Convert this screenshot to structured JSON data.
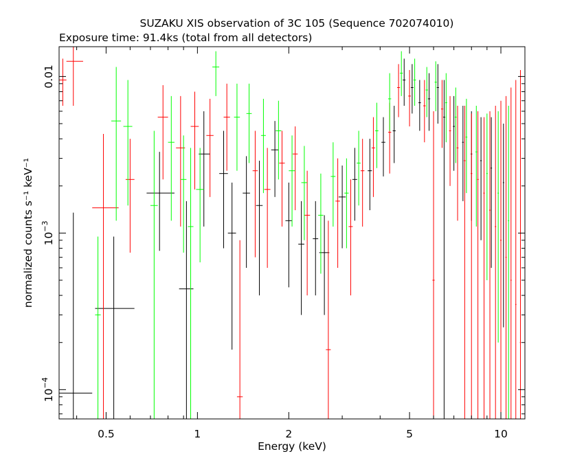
{
  "chart_data": {
    "type": "scatter",
    "title": "SUZAKU XIS observation of 3C 105 (Sequence 702074010)",
    "subtitle": "Exposure time: 91.4ks (total from all detectors)",
    "xlabel": "Energy (keV)",
    "ylabel": "normalized counts s⁻¹ keV⁻¹",
    "xscale": "log",
    "yscale": "log",
    "xlim": [
      0.35,
      12.0
    ],
    "ylim": [
      6.5e-05,
      0.0155
    ],
    "grid": false,
    "x_ticks": [
      0.5,
      1,
      2,
      5,
      10
    ],
    "x_tick_labels": [
      "0.5",
      "1",
      "2",
      "5",
      "10"
    ],
    "y_ticks": [
      0.0001,
      0.001,
      0.01
    ],
    "y_tick_labels": [
      {
        "base": "10",
        "exp": "−4"
      },
      {
        "base": "10",
        "exp": "−3"
      },
      {
        "base": "",
        "exp": "",
        "plain": "0.01"
      }
    ],
    "series": [
      {
        "color": "#000000",
        "points": [
          {
            "x": 0.39,
            "xlo": 0.35,
            "xhi": 0.45,
            "y": 9.5e-05,
            "ylo": 6.5e-05,
            "yhi": 0.00135
          },
          {
            "x": 0.53,
            "xlo": 0.46,
            "xhi": 0.62,
            "y": 0.00033,
            "ylo": 6.5e-05,
            "yhi": 0.00095
          },
          {
            "x": 0.75,
            "xlo": 0.68,
            "xhi": 0.84,
            "y": 0.0018,
            "ylo": 0.00077,
            "yhi": 0.0033
          },
          {
            "x": 0.92,
            "xlo": 0.87,
            "xhi": 0.97,
            "y": 0.00044,
            "ylo": 6.5e-05,
            "yhi": 0.0016
          },
          {
            "x": 1.05,
            "xlo": 1.01,
            "xhi": 1.1,
            "y": 0.0032,
            "ylo": 0.0011,
            "yhi": 0.006
          },
          {
            "x": 1.22,
            "xlo": 1.18,
            "xhi": 1.26,
            "y": 0.0024,
            "ylo": 0.0008,
            "yhi": 0.0045
          },
          {
            "x": 1.3,
            "xlo": 1.26,
            "xhi": 1.34,
            "y": 0.001,
            "ylo": 0.00018,
            "yhi": 0.0021
          },
          {
            "x": 1.45,
            "xlo": 1.41,
            "xhi": 1.49,
            "y": 0.0018,
            "ylo": 0.0006,
            "yhi": 0.0031
          },
          {
            "x": 1.6,
            "xlo": 1.56,
            "xhi": 1.64,
            "y": 0.0015,
            "ylo": 0.0004,
            "yhi": 0.0029
          },
          {
            "x": 1.8,
            "xlo": 1.75,
            "xhi": 1.85,
            "y": 0.0034,
            "ylo": 0.0017,
            "yhi": 0.0052
          },
          {
            "x": 2.0,
            "xlo": 1.95,
            "xhi": 2.05,
            "y": 0.0012,
            "ylo": 0.00045,
            "yhi": 0.0021
          },
          {
            "x": 2.2,
            "xlo": 2.15,
            "xhi": 2.25,
            "y": 0.00085,
            "ylo": 0.0003,
            "yhi": 0.0016
          },
          {
            "x": 2.45,
            "xlo": 2.4,
            "xhi": 2.5,
            "y": 0.00092,
            "ylo": 0.0004,
            "yhi": 0.0016
          },
          {
            "x": 2.62,
            "xlo": 2.52,
            "xhi": 2.72,
            "y": 0.00075,
            "ylo": 0.0003,
            "yhi": 0.0013
          },
          {
            "x": 3.0,
            "xlo": 2.92,
            "xhi": 3.08,
            "y": 0.0017,
            "ylo": 0.0008,
            "yhi": 0.0027
          },
          {
            "x": 3.3,
            "xlo": 3.24,
            "xhi": 3.36,
            "y": 0.0022,
            "ylo": 0.0012,
            "yhi": 0.0035
          },
          {
            "x": 3.7,
            "xlo": 3.64,
            "xhi": 3.76,
            "y": 0.0025,
            "ylo": 0.0014,
            "yhi": 0.004
          },
          {
            "x": 4.1,
            "xlo": 4.04,
            "xhi": 4.16,
            "y": 0.0038,
            "ylo": 0.0023,
            "yhi": 0.0055
          },
          {
            "x": 4.45,
            "xlo": 4.4,
            "xhi": 4.5,
            "y": 0.0045,
            "ylo": 0.0028,
            "yhi": 0.0065
          },
          {
            "x": 4.8,
            "xlo": 4.75,
            "xhi": 4.85,
            "y": 0.0095,
            "ylo": 0.0065,
            "yhi": 0.013
          },
          {
            "x": 5.1,
            "xlo": 5.05,
            "xhi": 5.15,
            "y": 0.0085,
            "ylo": 0.0058,
            "yhi": 0.012
          },
          {
            "x": 5.4,
            "xlo": 5.35,
            "xhi": 5.45,
            "y": 0.0068,
            "ylo": 0.0045,
            "yhi": 0.0095
          },
          {
            "x": 5.8,
            "xlo": 5.75,
            "xhi": 5.85,
            "y": 0.0072,
            "ylo": 0.0045,
            "yhi": 0.0105
          },
          {
            "x": 6.2,
            "xlo": 6.15,
            "xhi": 6.25,
            "y": 0.0085,
            "ylo": 0.005,
            "yhi": 0.012
          },
          {
            "x": 6.5,
            "xlo": 6.45,
            "xhi": 6.55,
            "y": 0.0055,
            "ylo": 6.5e-05,
            "yhi": 0.0095
          },
          {
            "x": 7.0,
            "xlo": 6.95,
            "xhi": 7.05,
            "y": 0.0048,
            "ylo": 0.0025,
            "yhi": 0.0075
          },
          {
            "x": 7.5,
            "xlo": 7.45,
            "xhi": 7.55,
            "y": 0.0038,
            "ylo": 0.0016,
            "yhi": 0.0065
          },
          {
            "x": 8.0,
            "xlo": 7.95,
            "xhi": 8.05,
            "y": 0.0032,
            "ylo": 0.0012,
            "yhi": 0.006
          },
          {
            "x": 8.6,
            "xlo": 8.55,
            "xhi": 8.65,
            "y": 0.0029,
            "ylo": 0.0009,
            "yhi": 0.0055
          },
          {
            "x": 9.3,
            "xlo": 9.25,
            "xhi": 9.35,
            "y": 0.0026,
            "ylo": 0.0006,
            "yhi": 0.0055
          },
          {
            "x": 10.2,
            "xlo": 10.15,
            "xhi": 10.25,
            "y": 0.0021,
            "ylo": 0.00025,
            "yhi": 0.005
          }
        ]
      },
      {
        "color": "#ff0000",
        "points": [
          {
            "x": 0.36,
            "xlo": 0.35,
            "xhi": 0.37,
            "y": 0.0095,
            "ylo": 0.0065,
            "yhi": 0.013
          },
          {
            "x": 0.39,
            "xlo": 0.37,
            "xhi": 0.42,
            "y": 0.0125,
            "ylo": 0.0065,
            "yhi": 0.0155
          },
          {
            "x": 0.49,
            "xlo": 0.45,
            "xhi": 0.55,
            "y": 0.00145,
            "ylo": 6.5e-05,
            "yhi": 0.0043
          },
          {
            "x": 0.6,
            "xlo": 0.58,
            "xhi": 0.62,
            "y": 0.0022,
            "ylo": 0.00075,
            "yhi": 0.004
          },
          {
            "x": 0.77,
            "xlo": 0.74,
            "xhi": 0.8,
            "y": 0.0055,
            "ylo": 0.0022,
            "yhi": 0.0088
          },
          {
            "x": 0.88,
            "xlo": 0.85,
            "xhi": 0.91,
            "y": 0.0035,
            "ylo": 0.0011,
            "yhi": 0.0075
          },
          {
            "x": 0.98,
            "xlo": 0.95,
            "xhi": 1.01,
            "y": 0.0048,
            "ylo": 0.0019,
            "yhi": 0.008
          },
          {
            "x": 1.1,
            "xlo": 1.07,
            "xhi": 1.13,
            "y": 0.0042,
            "ylo": 0.0017,
            "yhi": 0.0072
          },
          {
            "x": 1.25,
            "xlo": 1.22,
            "xhi": 1.28,
            "y": 0.0055,
            "ylo": 0.0025,
            "yhi": 0.009
          },
          {
            "x": 1.38,
            "xlo": 1.35,
            "xhi": 1.41,
            "y": 9e-05,
            "ylo": 6.5e-05,
            "yhi": 0.0009
          },
          {
            "x": 1.55,
            "xlo": 1.52,
            "xhi": 1.58,
            "y": 0.0025,
            "ylo": 0.0007,
            "yhi": 0.0045
          },
          {
            "x": 1.7,
            "xlo": 1.66,
            "xhi": 1.74,
            "y": 0.0019,
            "ylo": 0.0006,
            "yhi": 0.0035
          },
          {
            "x": 1.9,
            "xlo": 1.86,
            "xhi": 1.94,
            "y": 0.0028,
            "ylo": 0.0011,
            "yhi": 0.0045
          },
          {
            "x": 2.1,
            "xlo": 2.06,
            "xhi": 2.14,
            "y": 0.0032,
            "ylo": 0.0014,
            "yhi": 0.0048
          },
          {
            "x": 2.3,
            "xlo": 2.25,
            "xhi": 2.35,
            "y": 0.0013,
            "ylo": 0.0004,
            "yhi": 0.0025
          },
          {
            "x": 2.7,
            "xlo": 2.65,
            "xhi": 2.75,
            "y": 0.00018,
            "ylo": 6.5e-05,
            "yhi": 0.0012
          },
          {
            "x": 2.9,
            "xlo": 2.85,
            "xhi": 2.95,
            "y": 0.0016,
            "ylo": 0.0006,
            "yhi": 0.003
          },
          {
            "x": 3.2,
            "xlo": 3.15,
            "xhi": 3.25,
            "y": 0.0011,
            "ylo": 0.0004,
            "yhi": 0.0022
          },
          {
            "x": 3.5,
            "xlo": 3.45,
            "xhi": 3.55,
            "y": 0.0025,
            "ylo": 0.0011,
            "yhi": 0.004
          },
          {
            "x": 3.8,
            "xlo": 3.75,
            "xhi": 3.85,
            "y": 0.0035,
            "ylo": 0.0017,
            "yhi": 0.0055
          },
          {
            "x": 4.3,
            "xlo": 4.25,
            "xhi": 4.35,
            "y": 0.0044,
            "ylo": 0.0024,
            "yhi": 0.0068
          },
          {
            "x": 4.6,
            "xlo": 4.55,
            "xhi": 4.65,
            "y": 0.0085,
            "ylo": 0.0055,
            "yhi": 0.012
          },
          {
            "x": 5.0,
            "xlo": 4.95,
            "xhi": 5.05,
            "y": 0.0075,
            "ylo": 0.0048,
            "yhi": 0.011
          },
          {
            "x": 5.6,
            "xlo": 5.55,
            "xhi": 5.65,
            "y": 0.0065,
            "ylo": 0.0038,
            "yhi": 0.0095
          },
          {
            "x": 6.0,
            "xlo": 5.95,
            "xhi": 6.05,
            "y": 0.0005,
            "ylo": 6.5e-05,
            "yhi": 0.006
          },
          {
            "x": 6.4,
            "xlo": 6.35,
            "xhi": 6.45,
            "y": 0.0062,
            "ylo": 0.0035,
            "yhi": 0.0095
          },
          {
            "x": 6.8,
            "xlo": 6.75,
            "xhi": 6.85,
            "y": 0.0045,
            "ylo": 0.002,
            "yhi": 0.0075
          },
          {
            "x": 7.2,
            "xlo": 7.15,
            "xhi": 7.25,
            "y": 0.0035,
            "ylo": 0.0012,
            "yhi": 0.0065
          },
          {
            "x": 7.6,
            "xlo": 7.55,
            "xhi": 7.65,
            "y": 0.0029,
            "ylo": 6.5e-05,
            "yhi": 0.0065
          },
          {
            "x": 8.0,
            "xlo": 7.95,
            "xhi": 8.05,
            "y": 0.0024,
            "ylo": 6.5e-05,
            "yhi": 0.0058
          },
          {
            "x": 8.4,
            "xlo": 8.35,
            "xhi": 8.45,
            "y": 0.0022,
            "ylo": 6.5e-05,
            "yhi": 0.006
          },
          {
            "x": 8.8,
            "xlo": 8.75,
            "xhi": 8.85,
            "y": 0.0018,
            "ylo": 6.5e-05,
            "yhi": 0.0055
          },
          {
            "x": 9.2,
            "xlo": 9.15,
            "xhi": 9.25,
            "y": 0.0014,
            "ylo": 6.5e-05,
            "yhi": 0.006
          },
          {
            "x": 9.6,
            "xlo": 9.55,
            "xhi": 9.65,
            "y": 0.0011,
            "ylo": 6.5e-05,
            "yhi": 0.0065
          },
          {
            "x": 10.0,
            "xlo": 9.95,
            "xhi": 10.05,
            "y": 0.0009,
            "ylo": 6.5e-05,
            "yhi": 0.007
          },
          {
            "x": 10.4,
            "xlo": 10.35,
            "xhi": 10.45,
            "y": 0.0007,
            "ylo": 6.5e-05,
            "yhi": 0.0075
          },
          {
            "x": 10.8,
            "xlo": 10.75,
            "xhi": 10.85,
            "y": 0.0005,
            "ylo": 6.5e-05,
            "yhi": 0.0085
          },
          {
            "x": 11.2,
            "xlo": 11.15,
            "xhi": 11.25,
            "y": 0.00035,
            "ylo": 6.5e-05,
            "yhi": 0.0095
          },
          {
            "x": 11.6,
            "xlo": 11.55,
            "xhi": 11.65,
            "y": 0.0002,
            "ylo": 6.5e-05,
            "yhi": 0.011
          }
        ]
      },
      {
        "color": "#00ff00",
        "points": [
          {
            "x": 0.47,
            "xlo": 0.46,
            "xhi": 0.48,
            "y": 0.0003,
            "ylo": 6.5e-05,
            "yhi": 0.00095
          },
          {
            "x": 0.54,
            "xlo": 0.52,
            "xhi": 0.56,
            "y": 0.0052,
            "ylo": 0.0012,
            "yhi": 0.0115
          },
          {
            "x": 0.59,
            "xlo": 0.57,
            "xhi": 0.61,
            "y": 0.0048,
            "ylo": 0.0015,
            "yhi": 0.0095
          },
          {
            "x": 0.72,
            "xlo": 0.7,
            "xhi": 0.74,
            "y": 0.0015,
            "ylo": 6.5e-05,
            "yhi": 0.0045
          },
          {
            "x": 0.82,
            "xlo": 0.8,
            "xhi": 0.84,
            "y": 0.0038,
            "ylo": 0.0012,
            "yhi": 0.0075
          },
          {
            "x": 0.9,
            "xlo": 0.88,
            "xhi": 0.92,
            "y": 0.0022,
            "ylo": 0.00075,
            "yhi": 0.0042
          },
          {
            "x": 0.95,
            "xlo": 0.93,
            "xhi": 0.97,
            "y": 0.0011,
            "ylo": 6.5e-05,
            "yhi": 0.0035
          },
          {
            "x": 1.02,
            "xlo": 0.99,
            "xhi": 1.05,
            "y": 0.0019,
            "ylo": 0.00065,
            "yhi": 0.0035
          },
          {
            "x": 1.15,
            "xlo": 1.12,
            "xhi": 1.18,
            "y": 0.0115,
            "ylo": 0.0075,
            "yhi": 0.0145
          },
          {
            "x": 1.35,
            "xlo": 1.32,
            "xhi": 1.38,
            "y": 0.0055,
            "ylo": 0.0025,
            "yhi": 0.009
          },
          {
            "x": 1.48,
            "xlo": 1.45,
            "xhi": 1.51,
            "y": 0.0058,
            "ylo": 0.0028,
            "yhi": 0.009
          },
          {
            "x": 1.65,
            "xlo": 1.62,
            "xhi": 1.68,
            "y": 0.0042,
            "ylo": 0.0018,
            "yhi": 0.0072
          },
          {
            "x": 1.85,
            "xlo": 1.81,
            "xhi": 1.89,
            "y": 0.0045,
            "ylo": 0.0022,
            "yhi": 0.007
          },
          {
            "x": 2.05,
            "xlo": 2.0,
            "xhi": 2.1,
            "y": 0.0025,
            "ylo": 0.0011,
            "yhi": 0.0042
          },
          {
            "x": 2.25,
            "xlo": 2.2,
            "xhi": 2.3,
            "y": 0.0021,
            "ylo": 0.0009,
            "yhi": 0.0036
          },
          {
            "x": 2.55,
            "xlo": 2.5,
            "xhi": 2.6,
            "y": 0.0013,
            "ylo": 0.00055,
            "yhi": 0.0024
          },
          {
            "x": 2.8,
            "xlo": 2.75,
            "xhi": 2.85,
            "y": 0.0023,
            "ylo": 0.0011,
            "yhi": 0.0038
          },
          {
            "x": 3.1,
            "xlo": 3.05,
            "xhi": 3.15,
            "y": 0.0018,
            "ylo": 0.0008,
            "yhi": 0.003
          },
          {
            "x": 3.4,
            "xlo": 3.35,
            "xhi": 3.45,
            "y": 0.0028,
            "ylo": 0.0015,
            "yhi": 0.0045
          },
          {
            "x": 3.9,
            "xlo": 3.85,
            "xhi": 3.95,
            "y": 0.0045,
            "ylo": 0.0026,
            "yhi": 0.0068
          },
          {
            "x": 4.3,
            "xlo": 4.25,
            "xhi": 4.35,
            "y": 0.0072,
            "ylo": 0.0045,
            "yhi": 0.0105
          },
          {
            "x": 4.7,
            "xlo": 4.65,
            "xhi": 4.75,
            "y": 0.0105,
            "ylo": 0.0075,
            "yhi": 0.0145
          },
          {
            "x": 5.2,
            "xlo": 5.15,
            "xhi": 5.25,
            "y": 0.0095,
            "ylo": 0.0065,
            "yhi": 0.013
          },
          {
            "x": 5.7,
            "xlo": 5.65,
            "xhi": 5.75,
            "y": 0.0082,
            "ylo": 0.0055,
            "yhi": 0.0115
          },
          {
            "x": 6.1,
            "xlo": 6.05,
            "xhi": 6.15,
            "y": 0.0092,
            "ylo": 0.006,
            "yhi": 0.0125
          },
          {
            "x": 6.6,
            "xlo": 6.55,
            "xhi": 6.65,
            "y": 0.0068,
            "ylo": 0.0038,
            "yhi": 0.0105
          },
          {
            "x": 7.1,
            "xlo": 7.05,
            "xhi": 7.15,
            "y": 0.0055,
            "ylo": 0.0028,
            "yhi": 0.0085
          },
          {
            "x": 7.7,
            "xlo": 7.65,
            "xhi": 7.75,
            "y": 0.0041,
            "ylo": 0.0018,
            "yhi": 0.0072
          },
          {
            "x": 8.3,
            "xlo": 8.25,
            "xhi": 8.35,
            "y": 0.0033,
            "ylo": 0.0011,
            "yhi": 0.0065
          },
          {
            "x": 9.0,
            "xlo": 8.95,
            "xhi": 9.05,
            "y": 0.0024,
            "ylo": 0.0005,
            "yhi": 0.0058
          },
          {
            "x": 9.8,
            "xlo": 9.75,
            "xhi": 9.85,
            "y": 0.0018,
            "ylo": 0.0002,
            "yhi": 0.006
          },
          {
            "x": 10.6,
            "xlo": 10.55,
            "xhi": 10.65,
            "y": 0.0012,
            "ylo": 6.5e-05,
            "yhi": 0.0065
          }
        ]
      }
    ]
  }
}
